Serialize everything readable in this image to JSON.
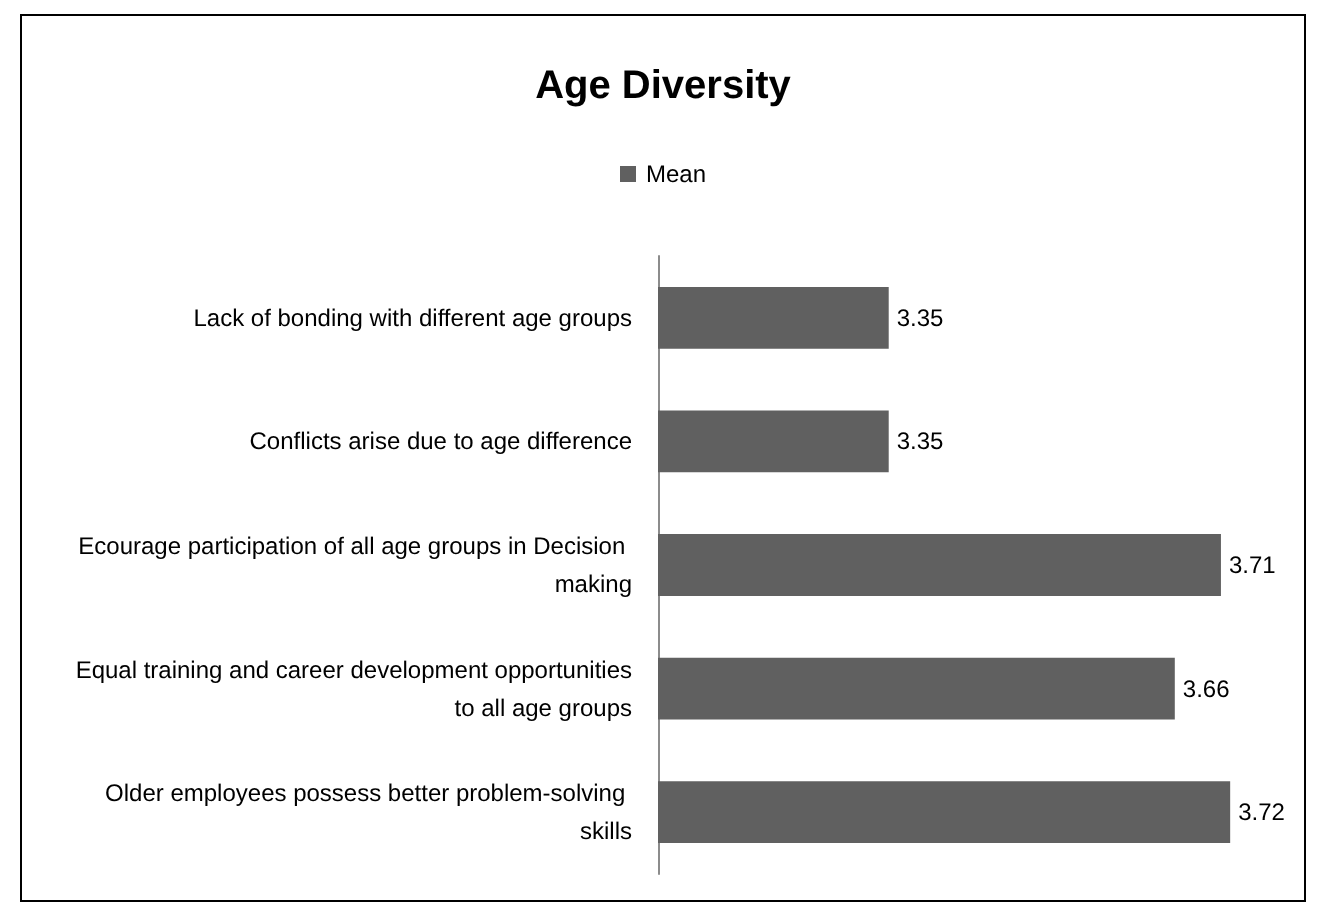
{
  "chart_data": {
    "type": "bar",
    "orientation": "horizontal",
    "title": "Age Diversity",
    "categories": [
      "Lack of bonding with different age groups",
      "Conflicts arise due to age difference",
      "Ecourage participation of all age groups in Decision making",
      "Equal training and career development opportunities to all age groups",
      "Older employees possess better problem-solving skills"
    ],
    "series": [
      {
        "name": "Mean",
        "color": "#606060",
        "values": [
          3.35,
          3.35,
          3.71,
          3.66,
          3.72
        ]
      }
    ],
    "xlim": [
      3.1,
      3.8
    ],
    "data_labels": true,
    "legend": "top",
    "grid": false,
    "tick_labels": "y"
  }
}
